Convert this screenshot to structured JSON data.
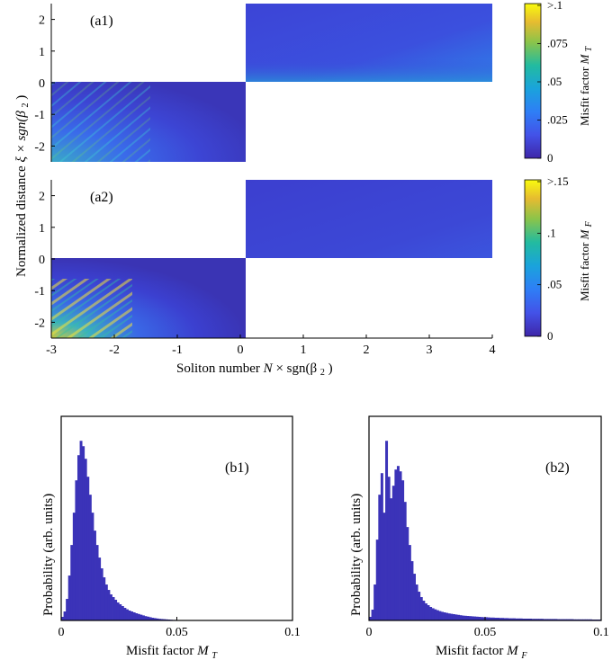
{
  "chart_data": [
    {
      "id": "a1",
      "type": "heatmap",
      "panel_label": "(a1)",
      "xlim": [
        -3,
        4
      ],
      "ylim": [
        -2.5,
        2.5
      ],
      "yticks": [
        "-2",
        "-1",
        "0",
        "1",
        "2"
      ],
      "regions": [
        {
          "x": [
            -3,
            0
          ],
          "y": [
            -2.5,
            0
          ],
          "description_level": "higher misfit near N=-3, ξ<-0.5"
        },
        {
          "x": [
            0,
            4
          ],
          "y": [
            0,
            2.5
          ],
          "description_level": "low misfit, increasing near ξ=0 and N=4"
        }
      ],
      "colorbar": {
        "label_prefix": "Misfit factor",
        "label_var": "M",
        "label_sub": "T",
        "ticks": [
          ">.1",
          ".075",
          ".05",
          ".025",
          "0"
        ],
        "range": [
          0,
          0.1
        ]
      }
    },
    {
      "id": "a2",
      "type": "heatmap",
      "panel_label": "(a2)",
      "xlim": [
        -3,
        4
      ],
      "ylim": [
        -2.5,
        2.5
      ],
      "xticks": [
        "-3",
        "-2",
        "-1",
        "0",
        "1",
        "2",
        "3",
        "4"
      ],
      "yticks": [
        "-2",
        "-1",
        "0",
        "1",
        "2"
      ],
      "colorbar": {
        "label_prefix": "Misfit factor",
        "label_var": "M",
        "label_sub": "F",
        "ticks": [
          ">.15",
          ".1",
          ".05",
          "0"
        ],
        "range": [
          0,
          0.15
        ]
      }
    },
    {
      "id": "b1",
      "type": "bar",
      "panel_label": "(b1)",
      "xlim": [
        0,
        0.1
      ],
      "xticks": [
        "0",
        "0.05",
        "0.1"
      ],
      "ylabel": "Probability (arb. units)",
      "xlabel_prefix": "Misfit factor",
      "xlabel_var": "M",
      "xlabel_sub": "T",
      "bin_width": 0.001,
      "values": [
        0.02,
        0.05,
        0.12,
        0.25,
        0.42,
        0.6,
        0.78,
        0.92,
        1.0,
        0.97,
        0.9,
        0.8,
        0.7,
        0.6,
        0.5,
        0.42,
        0.35,
        0.29,
        0.24,
        0.2,
        0.17,
        0.145,
        0.13,
        0.115,
        0.1,
        0.09,
        0.08,
        0.07,
        0.062,
        0.055,
        0.05,
        0.045,
        0.04,
        0.036,
        0.032,
        0.028,
        0.024,
        0.021,
        0.018,
        0.015,
        0.013,
        0.011,
        0.009,
        0.008,
        0.007,
        0.006,
        0.005,
        0.004,
        0.003,
        0.003,
        0.002,
        0.002,
        0.002,
        0.001,
        0.001,
        0.001,
        0.001,
        0.001,
        0.001,
        0.001,
        0.001,
        0.001,
        0.001,
        0.001,
        0.001,
        0.001,
        0.001,
        0.001,
        0.001,
        0.001,
        0.001,
        0.001,
        0.001,
        0.001,
        0.001,
        0.001,
        0.001,
        0.001,
        0.001,
        0.001,
        0.001,
        0.001,
        0.001,
        0.001,
        0.001,
        0.001,
        0.001,
        0.001,
        0.001,
        0.001,
        0.001,
        0.001,
        0.001,
        0.001,
        0.001,
        0.001,
        0.001,
        0.001,
        0.001,
        0.001
      ]
    },
    {
      "id": "b2",
      "type": "bar",
      "panel_label": "(b2)",
      "xlim": [
        0,
        0.1
      ],
      "xticks": [
        "0",
        "0.05",
        "0.1"
      ],
      "ylabel": "Probability (arb. units)",
      "xlabel_prefix": "Misfit factor",
      "xlabel_var": "M",
      "xlabel_sub": "F",
      "bin_width": 0.001,
      "values": [
        0.02,
        0.06,
        0.2,
        0.45,
        0.7,
        0.82,
        0.6,
        1.0,
        0.8,
        0.68,
        0.75,
        0.84,
        0.86,
        0.83,
        0.78,
        0.66,
        0.52,
        0.42,
        0.33,
        0.26,
        0.2,
        0.16,
        0.13,
        0.11,
        0.095,
        0.085,
        0.075,
        0.068,
        0.062,
        0.057,
        0.052,
        0.048,
        0.045,
        0.042,
        0.039,
        0.037,
        0.035,
        0.033,
        0.031,
        0.029,
        0.027,
        0.026,
        0.025,
        0.024,
        0.023,
        0.022,
        0.021,
        0.02,
        0.019,
        0.018,
        0.018,
        0.017,
        0.016,
        0.016,
        0.015,
        0.015,
        0.014,
        0.014,
        0.013,
        0.013,
        0.012,
        0.012,
        0.012,
        0.011,
        0.011,
        0.011,
        0.01,
        0.01,
        0.01,
        0.01,
        0.009,
        0.009,
        0.009,
        0.009,
        0.009,
        0.008,
        0.008,
        0.008,
        0.008,
        0.008,
        0.008,
        0.007,
        0.007,
        0.007,
        0.007,
        0.007,
        0.007,
        0.007,
        0.006,
        0.006,
        0.006,
        0.006,
        0.006,
        0.006,
        0.006,
        0.006,
        0.005,
        0.005,
        0.005,
        0.005
      ]
    }
  ],
  "axes_text": {
    "ylabel_a": "Normalized distance",
    "ylabel_a_var": "ξ × sgn(β",
    "ylabel_a_sub": "2",
    "ylabel_a_close": ")",
    "xlabel_a_prefix": "Soliton number",
    "xlabel_a_var": "N",
    "xlabel_a_mid": " × sgn(β",
    "xlabel_a_sub": "2",
    "xlabel_a_close": ")"
  },
  "colors": {
    "parula_low": "#3e26a8",
    "parula_mid": "#2a8fd9",
    "parula_high": "#f9fb0e",
    "hist_fill": "#3b33b8"
  }
}
